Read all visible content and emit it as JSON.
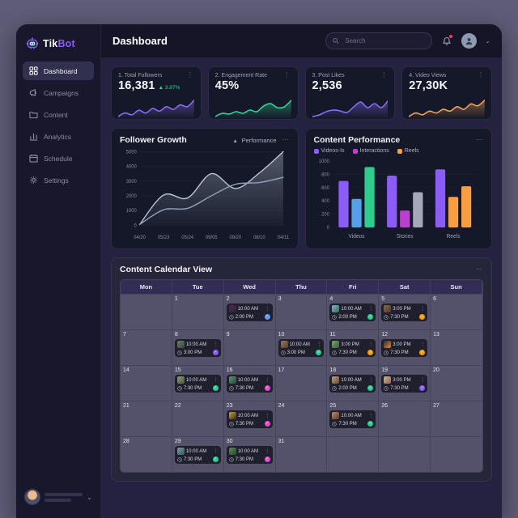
{
  "sidebar": {
    "brand": {
      "primary": "Tik",
      "accent": "Bot"
    },
    "items": [
      {
        "label": "Dashboard",
        "icon": "grid",
        "active": true
      },
      {
        "label": "Campaigns",
        "icon": "megaphone",
        "active": false
      },
      {
        "label": "Content",
        "icon": "folder",
        "active": false
      },
      {
        "label": "Analytics",
        "icon": "bars",
        "active": false
      },
      {
        "label": "Schedule",
        "icon": "calendar",
        "active": false
      },
      {
        "label": "Settings",
        "icon": "gear",
        "active": false
      }
    ]
  },
  "header": {
    "title": "Dashboard",
    "search_placeholder": "Search"
  },
  "stats": [
    {
      "label": "1. Total Followers",
      "value": "16,381",
      "delta": "▲ 3.87%",
      "color": "#8b6cf7",
      "spark": [
        3,
        5,
        4,
        6.5,
        5,
        7.5,
        6,
        8.5,
        7,
        9.5,
        8.5,
        12
      ]
    },
    {
      "label": "2. Engagement Rate",
      "value": "45%",
      "delta": "",
      "color": "#34d399",
      "spark": [
        3,
        5,
        4.5,
        6,
        5,
        7,
        6,
        9.5,
        11,
        8.5,
        9,
        13
      ]
    },
    {
      "label": "3. Post Likes",
      "value": "2,536",
      "delta": "",
      "color": "#8b6cf7",
      "spark": [
        2,
        3,
        5,
        6,
        5.5,
        4.5,
        8,
        11,
        7.5,
        10,
        7.5,
        12
      ]
    },
    {
      "label": "4. Video Views",
      "value": "27,30K",
      "delta": "",
      "color": "#f2a35c",
      "spark": [
        4,
        6,
        5,
        7,
        6,
        8,
        7,
        9.5,
        8,
        11,
        10,
        13
      ]
    }
  ],
  "chart_data": [
    {
      "type": "area",
      "title": "Follower Growth",
      "legend": [
        {
          "label": "Performance",
          "marker": "▴"
        }
      ],
      "x": [
        "04/20",
        "05/23",
        "05/24",
        "09/05",
        "09/20",
        "08/10",
        "04/11"
      ],
      "series": [
        {
          "name": "area-series",
          "values": [
            50,
            2050,
            1850,
            3500,
            2500,
            3550,
            5000
          ],
          "color": "#b9c4d4",
          "fill": true
        },
        {
          "name": "line-series",
          "values": [
            50,
            1050,
            1150,
            2000,
            2780,
            2900,
            3250
          ],
          "color": "#8fa0b8",
          "fill": false
        }
      ],
      "ylabel": "",
      "xlabel": "",
      "ylim": [
        0,
        5000
      ],
      "yticks": [
        0,
        1000,
        2000,
        3000,
        4000,
        5000
      ],
      "grid": true,
      "legend_position": "top-right"
    },
    {
      "type": "bar",
      "title": "Content Performance",
      "legend": [
        {
          "label": "Videos-Is",
          "color": "#8b5cf6"
        },
        {
          "label": "Interactions",
          "color": "#bb3fd1"
        },
        {
          "label": "Reels",
          "color": "#f59e42"
        }
      ],
      "categories": [
        "Videos",
        "Stories",
        "Reels"
      ],
      "groups": [
        {
          "category": "Videos",
          "bars": [
            {
              "value": 700,
              "color": "#8b5cf6"
            },
            {
              "value": 430,
              "color": "#55a0e8"
            },
            {
              "value": 910,
              "color": "#2fcc8e"
            }
          ]
        },
        {
          "category": "Stories",
          "bars": [
            {
              "value": 780,
              "color": "#8b5cf6"
            },
            {
              "value": 255,
              "color": "#bb3fd1"
            },
            {
              "value": 530,
              "color": "#a3a9b8"
            }
          ]
        },
        {
          "category": "Reels",
          "bars": [
            {
              "value": 875,
              "color": "#8b5cf6"
            },
            {
              "value": 460,
              "color": "#f59e42"
            },
            {
              "value": 620,
              "color": "#f59e42"
            }
          ]
        }
      ],
      "ylabel": "",
      "xlabel": "",
      "ylim": [
        0,
        1000
      ],
      "yticks": [
        0,
        200,
        400,
        600,
        800,
        1000
      ],
      "grid": false,
      "legend_position": "top-left"
    }
  ],
  "calendar": {
    "title": "Content Calendar View",
    "day_headers": [
      "Mon",
      "Tue",
      "Wed",
      "Thu",
      "Fri",
      "Sat",
      "Sun"
    ],
    "weeks": [
      [
        {
          "day": null
        },
        {
          "day": 1
        },
        {
          "day": 2,
          "event": {
            "time1": "10:00 AM",
            "time2": "2:00 PM",
            "status": "#5b9bf8",
            "thumb": [
              "#5a2440",
              "#1e2a4a"
            ]
          }
        },
        {
          "day": 3
        },
        {
          "day": 4,
          "event": {
            "time1": "10:00 AM",
            "time2": "2:00 PM",
            "status": "#2fcc8e",
            "thumb": [
              "#7fb3d5",
              "#3a6b4f"
            ]
          }
        },
        {
          "day": 5,
          "event": {
            "time1": "3:00 PM",
            "time2": "7:30 PM",
            "status": "#f59e0b",
            "thumb": [
              "#8a6a4a",
              "#4a3a2a"
            ]
          }
        },
        {
          "day": 6
        }
      ],
      [
        {
          "day": 7
        },
        {
          "day": 8,
          "event": {
            "time1": "10:00 AM",
            "time2": "3:00 PM",
            "status": "#8b5cf6",
            "thumb": [
              "#6a7a6a",
              "#3a4a3a"
            ]
          }
        },
        {
          "day": 9
        },
        {
          "day": 10,
          "event": {
            "time1": "10:00 AM",
            "time2": "3:00 PM",
            "status": "#2fcc8e",
            "thumb": [
              "#9a7a5a",
              "#5a3a2a"
            ]
          }
        },
        {
          "day": 11,
          "event": {
            "time1": "3:00 PM",
            "time2": "7:30 PM",
            "status": "#f59e0b",
            "thumb": [
              "#7aa86a",
              "#3a5a3a"
            ]
          }
        },
        {
          "day": 12,
          "event": {
            "time1": "3:00 PM",
            "time2": "7:30 PM",
            "status": "#f59e0b",
            "thumb": [
              "#2a2a2a",
              "#e08a3a"
            ]
          }
        },
        {
          "day": 13
        }
      ],
      [
        {
          "day": 14
        },
        {
          "day": 15,
          "event": {
            "time1": "10:00 AM",
            "time2": "7:30 PM",
            "status": "#2fcc8e",
            "thumb": [
              "#8a9a7a",
              "#4a5a3a"
            ]
          }
        },
        {
          "day": 16,
          "event": {
            "time1": "10:00 AM",
            "time2": "7:30 PM",
            "status": "#e04fd1",
            "thumb": [
              "#5a9a6a",
              "#2a4a3a"
            ]
          }
        },
        {
          "day": 17
        },
        {
          "day": 18,
          "event": {
            "time1": "10:00 AM",
            "time2": "2:00 PM",
            "status": "#2fcc8e",
            "thumb": [
              "#c0a080",
              "#6a4a3a"
            ]
          }
        },
        {
          "day": 19,
          "event": {
            "time1": "3:00 PM",
            "time2": "7:30 PM",
            "status": "#8b5cf6",
            "thumb": [
              "#d0b090",
              "#8a6a5a"
            ]
          }
        },
        {
          "day": 20
        }
      ],
      [
        {
          "day": 21
        },
        {
          "day": 22
        },
        {
          "day": 23,
          "event": {
            "time1": "10:00 AM",
            "time2": "7:30 PM",
            "status": "#e04fd1",
            "thumb": [
              "#d0a040",
              "#3a2a1a"
            ]
          }
        },
        {
          "day": 24
        },
        {
          "day": 25,
          "event": {
            "time1": "10:00 AM",
            "time2": "7:30 PM",
            "status": "#2fcc8e",
            "thumb": [
              "#c08a6a",
              "#5a3a2a"
            ]
          }
        },
        {
          "day": 26
        },
        {
          "day": 27
        }
      ],
      [
        {
          "day": 28
        },
        {
          "day": 29,
          "event": {
            "time1": "10:00 AM",
            "time2": "7:30 PM",
            "status": "#2fcc8e",
            "thumb": [
              "#7a9ab5",
              "#3a5a4a"
            ]
          }
        },
        {
          "day": 30,
          "event": {
            "time1": "10:00 AM",
            "time2": "7:30 PM",
            "status": "#e04fd1",
            "thumb": [
              "#5a8a5a",
              "#2a4a2a"
            ]
          }
        },
        {
          "day": 31
        },
        {
          "day": null
        },
        {
          "day": null
        },
        {
          "day": null
        }
      ]
    ]
  }
}
